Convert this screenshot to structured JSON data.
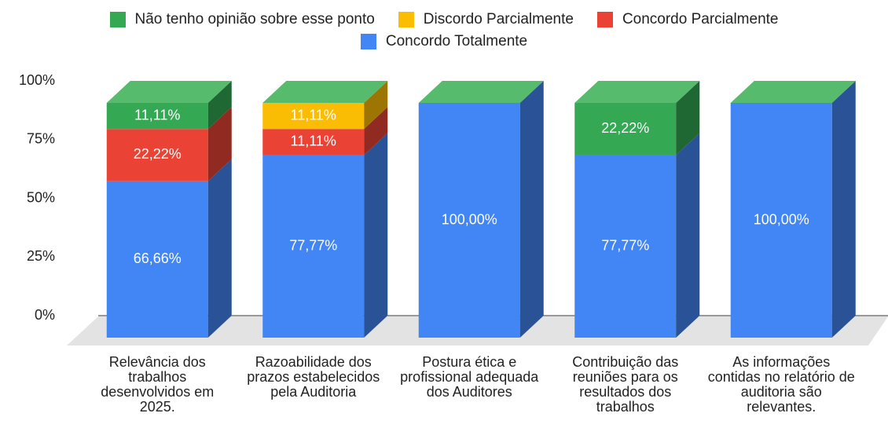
{
  "chart_data": {
    "type": "bar3d_stacked",
    "categories": [
      "Relevância dos trabalhos desenvolvidos em 2025.",
      "Razoabilidade dos prazos estabelecidos pela Auditoria",
      "Postura ética e profissional adequada dos Auditores",
      "Contribuição das reuniões para os resultados dos trabalhos",
      "As informações contidas no relatório de auditoria são relevantes."
    ],
    "series": [
      {
        "name": "Não tenho opinião sobre esse ponto",
        "color": "#34a853",
        "values": [
          11.11,
          null,
          null,
          22.22,
          null
        ],
        "value_labels": [
          "11,11%",
          null,
          null,
          "22,22%",
          null
        ]
      },
      {
        "name": "Discordo Parcialmente",
        "color": "#fbbc04",
        "values": [
          null,
          11.11,
          null,
          null,
          null
        ],
        "value_labels": [
          null,
          "11,11%",
          null,
          null,
          null
        ]
      },
      {
        "name": "Concordo Parcialmente",
        "color": "#ea4335",
        "values": [
          22.22,
          11.11,
          null,
          null,
          null
        ],
        "value_labels": [
          "22,22%",
          "11,11%",
          null,
          null,
          null
        ]
      },
      {
        "name": "Concordo  Totalmente",
        "color": "#4285f4",
        "values": [
          66.66,
          77.77,
          100,
          77.77,
          100
        ],
        "value_labels": [
          "66,66%",
          "77,77%",
          "100,00%",
          "77,77%",
          "100,00%"
        ]
      }
    ],
    "ylim": [
      0,
      100
    ],
    "yticks": [
      {
        "value": 0,
        "label": "0%"
      },
      {
        "value": 25,
        "label": "25%"
      },
      {
        "value": 50,
        "label": "50%"
      },
      {
        "value": 75,
        "label": "75%"
      },
      {
        "value": 100,
        "label": "100%"
      }
    ],
    "grid": false
  }
}
